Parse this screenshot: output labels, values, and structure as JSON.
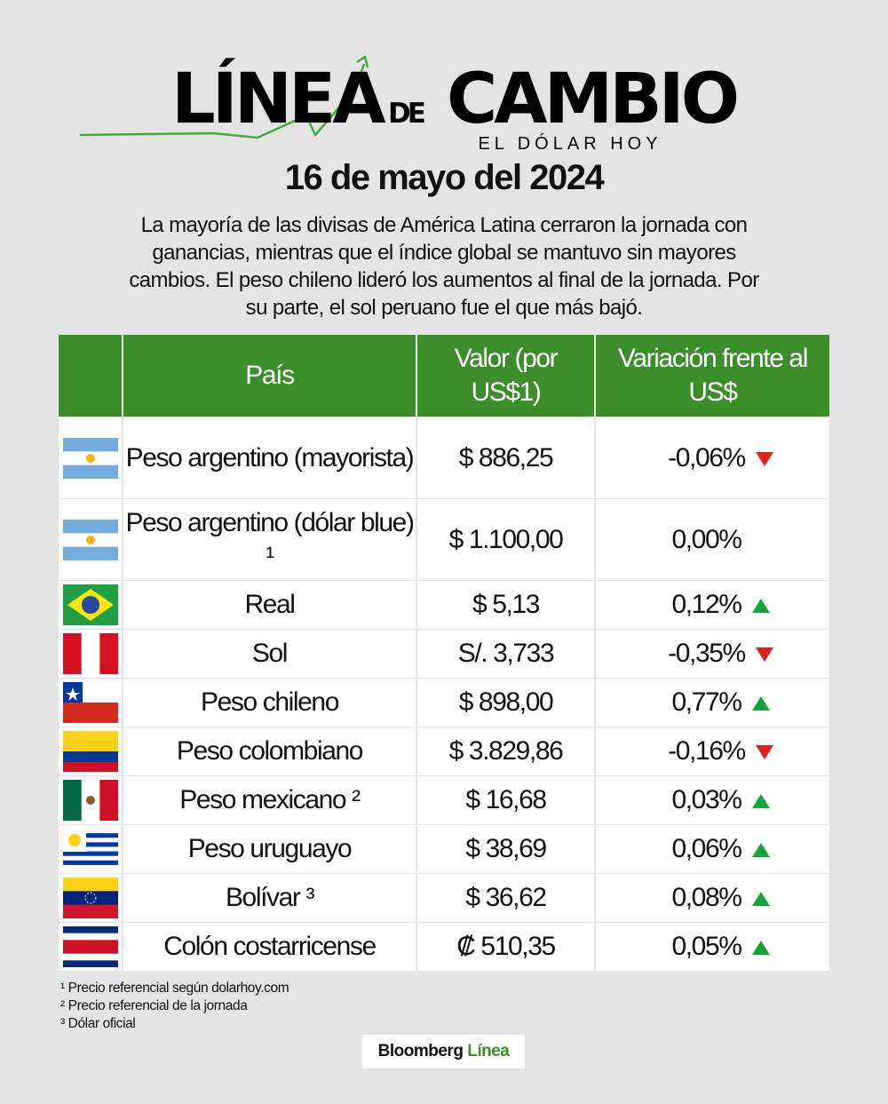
{
  "header": {
    "logo_main": "LÍNEA",
    "logo_de": "DE",
    "logo_cambio": "CAMBIO",
    "logo_sub": "EL DÓLAR HOY"
  },
  "date": "16 de mayo del 2024",
  "summary": "La mayoría de las divisas de América Latina cerraron la jornada con ganancias, mientras que el índice global se mantuvo sin mayores cambios. El peso chileno lideró los aumentos al final de la jornada. Por su parte, el sol peruano fue el que más bajó.",
  "table": {
    "columns": [
      "País",
      "Valor (por US$1)",
      "Variación frente al US$"
    ],
    "rows": [
      [
        "Peso argentino (mayorista)",
        "$ 886,25",
        "-0,06%"
      ],
      [
        "Peso argentino (dólar blue) ¹",
        "$ 1.100,00",
        "0,00%"
      ],
      [
        "Real",
        "$ 5,13",
        "0,12%"
      ],
      [
        "Sol",
        "S/. 3,733",
        "-0,35%"
      ],
      [
        "Peso chileno",
        "$ 898,00",
        "0,77%"
      ],
      [
        "Peso colombiano",
        "$ 3.829,86",
        "-0,16%"
      ],
      [
        "Peso mexicano ²",
        "$ 16,68",
        "0,03%"
      ],
      [
        "Peso uruguayo",
        "$ 38,69",
        "0,06%"
      ],
      [
        "Bolívar ³",
        "$ 36,62",
        "0,08%"
      ],
      [
        "Colón costarricense",
        "₡ 510,35",
        "0,05%"
      ]
    ]
  },
  "footnotes": [
    "¹ Precio referencial según dolarhoy.com",
    "² Precio referencial de la jornada",
    "³ Dólar oficial"
  ],
  "brand": {
    "name": "Bloomberg",
    "accent": "Línea"
  }
}
